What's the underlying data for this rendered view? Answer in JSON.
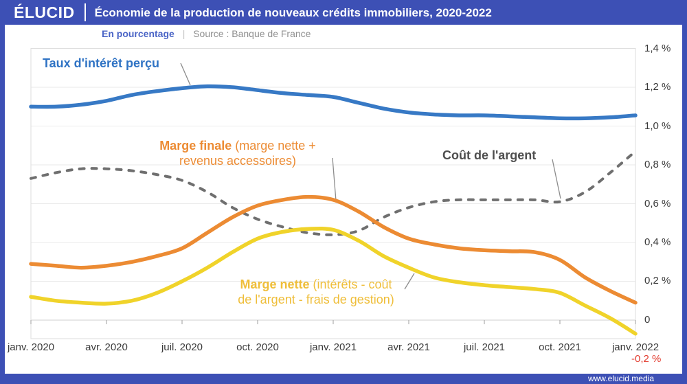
{
  "header": {
    "logo_text": "ÉLUCID",
    "title": "Économie de la production de nouveaux crédits immobiliers, 2020-2022"
  },
  "meta": {
    "unit": "En pourcentage",
    "separator": "|",
    "source": "Source : Banque de France"
  },
  "footer": {
    "site": "www.elucid.media"
  },
  "colors": {
    "brand_blue": "#3D50B5",
    "line_blue": "#3779C5",
    "line_orange": "#EC8B33",
    "line_yellow": "#F0D32A",
    "line_gray": "#6F6F6F",
    "negative_red": "#E23A2D",
    "grid": "#EAEAEA"
  },
  "chart_data": {
    "type": "line",
    "title": "Économie de la production de nouveaux crédits immobiliers, 2020-2022",
    "unit": "En pourcentage",
    "source": "Banque de France",
    "x_start": "janv. 2020",
    "x_end": "janv. 2022",
    "x_step": "month",
    "x_tick_labels": [
      "janv. 2020",
      "avr. 2020",
      "juil. 2020",
      "oct. 2020",
      "janv. 2021",
      "avr. 2021",
      "juil. 2021",
      "oct. 2021",
      "janv. 2022"
    ],
    "y_tick_labels": [
      "1,4 %",
      "1,2 %",
      "1,0 %",
      "0,8 %",
      "0,6 %",
      "0,4 %",
      "0,2 %",
      "0",
      "-0,2 %"
    ],
    "y_tick_values": [
      1.4,
      1.2,
      1.0,
      0.8,
      0.6,
      0.4,
      0.2,
      0,
      -0.2
    ],
    "ylim": [
      -0.1,
      1.4
    ],
    "grid": true,
    "legend_position": "inline-annotations",
    "series": [
      {
        "name": "Taux d'intérêt perçu",
        "color": "#3779C5",
        "dash": false,
        "values": [
          1.1,
          1.1,
          1.11,
          1.13,
          1.16,
          1.18,
          1.195,
          1.205,
          1.2,
          1.185,
          1.17,
          1.16,
          1.15,
          1.12,
          1.09,
          1.07,
          1.06,
          1.055,
          1.055,
          1.05,
          1.045,
          1.04,
          1.04,
          1.045,
          1.055
        ]
      },
      {
        "name": "Coût de l'argent",
        "color": "#6F6F6F",
        "dash": true,
        "values": [
          0.73,
          0.76,
          0.78,
          0.78,
          0.77,
          0.75,
          0.72,
          0.66,
          0.58,
          0.52,
          0.48,
          0.45,
          0.44,
          0.46,
          0.53,
          0.58,
          0.61,
          0.62,
          0.62,
          0.62,
          0.62,
          0.61,
          0.66,
          0.76,
          0.87
        ]
      },
      {
        "name": "Marge finale (marge nette + revenus accessoires)",
        "color": "#EC8B33",
        "dash": false,
        "values": [
          0.29,
          0.28,
          0.27,
          0.28,
          0.3,
          0.33,
          0.37,
          0.45,
          0.53,
          0.59,
          0.62,
          0.635,
          0.62,
          0.56,
          0.48,
          0.42,
          0.39,
          0.37,
          0.36,
          0.355,
          0.35,
          0.31,
          0.22,
          0.15,
          0.09
        ]
      },
      {
        "name": "Marge nette (intérêts - coût de l'argent - frais de gestion)",
        "color": "#F0D32A",
        "dash": false,
        "values": [
          0.12,
          0.1,
          0.09,
          0.085,
          0.1,
          0.14,
          0.2,
          0.27,
          0.35,
          0.42,
          0.455,
          0.47,
          0.465,
          0.41,
          0.33,
          0.27,
          0.22,
          0.195,
          0.18,
          0.17,
          0.16,
          0.14,
          0.075,
          0.01,
          -0.07
        ]
      }
    ],
    "annotations": [
      {
        "bold": "Taux d'intérêt perçu",
        "rest1": "",
        "rest2": ""
      },
      {
        "bold": "Marge finale",
        "rest1": " (marge nette +",
        "rest2": "revenus accessoires)"
      },
      {
        "bold": "Coût de l'argent",
        "rest1": "",
        "rest2": ""
      },
      {
        "bold": "Marge nette",
        "rest1": " (intérêts - coût",
        "rest2": "de l'argent - frais de gestion)"
      }
    ]
  }
}
